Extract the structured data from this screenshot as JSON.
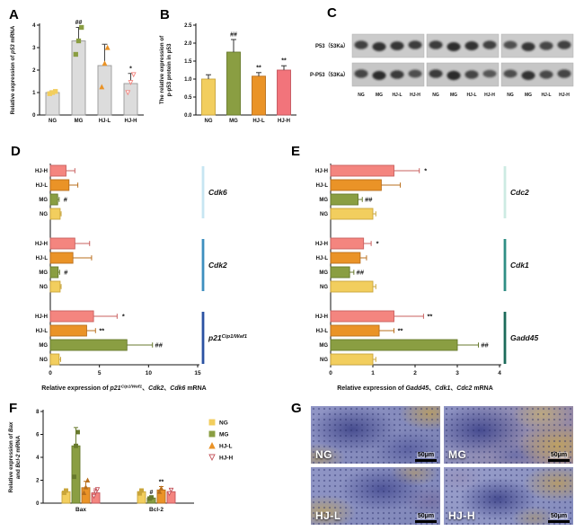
{
  "panel_letters": {
    "A": "A",
    "B": "B",
    "C": "C",
    "D": "D",
    "E": "E",
    "F": "F",
    "G": "G"
  },
  "group_colors": {
    "NG": "#F2CE5E",
    "MG": "#8A9E42",
    "HJ-L": "#EA9327",
    "HJ-H": "#F4857F"
  },
  "edge_colors": {
    "NG": "#C9A53A",
    "MG": "#67792C",
    "HJ-L": "#B96F1D",
    "HJ-H": "#C9605F"
  },
  "chart_data": [
    {
      "panel": "A",
      "type": "bar",
      "ylabel_lines": [
        [
          {
            "t": "Relative expression of "
          },
          {
            "t": "p53",
            "i": true
          },
          {
            "t": " mRNA"
          }
        ]
      ],
      "ylim": [
        0,
        4
      ],
      "yticks": [
        0,
        1,
        2,
        3,
        4
      ],
      "ytick_decimals": 0,
      "categories": [
        "NG",
        "MG",
        "HJ-L",
        "HJ-H"
      ],
      "values": [
        1.0,
        3.3,
        2.2,
        1.4
      ],
      "errors": [
        0.08,
        0.6,
        0.95,
        0.45
      ],
      "annotations": [
        "",
        "##",
        "",
        "*"
      ],
      "bar_colors": [
        "#dcdcdc",
        "#dcdcdc",
        "#dcdcdc",
        "#dcdcdc"
      ],
      "bar_edges": [
        "#999999",
        "#999999",
        "#999999",
        "#999999"
      ],
      "err_color": "#444444",
      "points": [
        [
          0.95,
          1.0,
          1.05
        ],
        [
          2.7,
          3.3,
          3.9
        ],
        [
          1.25,
          2.3,
          3.0
        ],
        [
          1.0,
          1.45,
          1.8
        ]
      ],
      "point_shapes": [
        "square",
        "square",
        "triangle",
        "triangle-down"
      ],
      "point_colors": [
        "#F2CE5E",
        "#8A9E42",
        "#EA9327",
        "#F4857F"
      ],
      "point_filled": [
        true,
        true,
        true,
        false
      ]
    },
    {
      "panel": "B",
      "type": "bar",
      "ylabel_lines": [
        [
          {
            "t": "The relative expression of"
          }
        ],
        [
          {
            "t": "p-p53 protein in p53"
          }
        ]
      ],
      "ylim": [
        0,
        2.5
      ],
      "yticks": [
        0,
        0.5,
        1,
        1.5,
        2,
        2.5
      ],
      "ytick_decimals": 1,
      "categories": [
        "NG",
        "MG",
        "HJ-L",
        "HJ-H"
      ],
      "values": [
        1.0,
        1.75,
        1.08,
        1.25
      ],
      "errors": [
        0.12,
        0.35,
        0.1,
        0.12
      ],
      "annotations": [
        "",
        "##",
        "**",
        "**"
      ],
      "bar_colors": [
        "#F2CE5E",
        "#8A9E42",
        "#EA9327",
        "#F2747B"
      ],
      "bar_edges": [
        "#C9A53A",
        "#67792C",
        "#B96F1D",
        "#C4555C"
      ],
      "err_color": "#333333"
    },
    {
      "panel": "C",
      "type": "western_blot",
      "row_labels": [
        "P53（53Ka）",
        "P-P53（53Ka）"
      ],
      "lane_labels": [
        "NG",
        "MG",
        "HJ-L",
        "HJ-H"
      ],
      "replicate_groups": 3,
      "bands": {
        "P53": [
          [
            0.75,
            0.9,
            0.85,
            0.8
          ],
          [
            0.8,
            0.95,
            0.9,
            0.75
          ],
          [
            0.6,
            0.85,
            0.7,
            0.75
          ]
        ],
        "P-P53": [
          [
            0.7,
            0.95,
            0.8,
            0.6
          ],
          [
            0.8,
            0.97,
            0.7,
            0.5
          ],
          [
            0.6,
            0.9,
            0.65,
            0.7
          ]
        ]
      }
    },
    {
      "panel": "D",
      "type": "bar_horizontal",
      "xlabel": [
        {
          "t": "Relative expression of "
        },
        {
          "t": "p21",
          "i": true
        },
        {
          "t": "Cip1/Waf1",
          "i": true,
          "sup": true
        },
        {
          "t": "、"
        },
        {
          "t": "Cdk2",
          "i": true
        },
        {
          "t": "、"
        },
        {
          "t": "Cdk6",
          "i": true
        },
        {
          "t": " mRNA"
        }
      ],
      "xlim": [
        0,
        15
      ],
      "xticks": [
        0,
        5,
        10,
        15
      ],
      "groups": [
        {
          "gene": [
            {
              "t": "Cdk6",
              "i": true
            }
          ],
          "bracket_color": "#C7E6F2",
          "rows": [
            {
              "label": "HJ-H",
              "value": 1.6,
              "err": 0.9,
              "annotation": ""
            },
            {
              "label": "HJ-L",
              "value": 1.9,
              "err": 0.9,
              "annotation": ""
            },
            {
              "label": "MG",
              "value": 0.75,
              "err": 0.15,
              "annotation": "#"
            },
            {
              "label": "NG",
              "value": 1.0,
              "err": 0.1,
              "annotation": ""
            }
          ]
        },
        {
          "gene": [
            {
              "t": "Cdk2",
              "i": true
            }
          ],
          "bracket_color": "#3E8FBF",
          "rows": [
            {
              "label": "HJ-H",
              "value": 2.5,
              "err": 1.5,
              "annotation": ""
            },
            {
              "label": "HJ-L",
              "value": 2.3,
              "err": 1.9,
              "annotation": ""
            },
            {
              "label": "MG",
              "value": 0.8,
              "err": 0.15,
              "annotation": "#"
            },
            {
              "label": "NG",
              "value": 1.0,
              "err": 0.1,
              "annotation": ""
            }
          ]
        },
        {
          "gene": [
            {
              "t": "p21",
              "i": true
            },
            {
              "t": "Cip1/Waf1",
              "i": true,
              "sup": true
            }
          ],
          "bracket_color": "#2B52A3",
          "rows": [
            {
              "label": "HJ-H",
              "value": 4.4,
              "err": 2.4,
              "annotation": "*"
            },
            {
              "label": "HJ-L",
              "value": 3.7,
              "err": 0.9,
              "annotation": "**"
            },
            {
              "label": "MG",
              "value": 7.8,
              "err": 2.6,
              "annotation": "##"
            },
            {
              "label": "NG",
              "value": 0.9,
              "err": 0.15,
              "annotation": ""
            }
          ]
        }
      ]
    },
    {
      "panel": "E",
      "type": "bar_horizontal",
      "xlabel": [
        {
          "t": "Relative expression of "
        },
        {
          "t": "Gadd45",
          "i": true
        },
        {
          "t": "、"
        },
        {
          "t": "Cdk1",
          "i": true
        },
        {
          "t": "、"
        },
        {
          "t": "Cdc2",
          "i": true
        },
        {
          "t": " mRNA"
        }
      ],
      "xlim": [
        0,
        4
      ],
      "xticks": [
        0,
        1,
        2,
        3,
        4
      ],
      "groups": [
        {
          "gene": [
            {
              "t": "Cdc2",
              "i": true
            }
          ],
          "bracket_color": "#CDEBE3",
          "rows": [
            {
              "label": "HJ-H",
              "value": 1.5,
              "err": 0.6,
              "annotation": "*"
            },
            {
              "label": "HJ-L",
              "value": 1.2,
              "err": 0.45,
              "annotation": ""
            },
            {
              "label": "MG",
              "value": 0.65,
              "err": 0.1,
              "annotation": "##"
            },
            {
              "label": "NG",
              "value": 1.0,
              "err": 0.07,
              "annotation": ""
            }
          ]
        },
        {
          "gene": [
            {
              "t": "Cdk1",
              "i": true
            }
          ],
          "bracket_color": "#2F8F85",
          "rows": [
            {
              "label": "HJ-H",
              "value": 0.78,
              "err": 0.18,
              "annotation": "*"
            },
            {
              "label": "HJ-L",
              "value": 0.7,
              "err": 0.15,
              "annotation": ""
            },
            {
              "label": "MG",
              "value": 0.45,
              "err": 0.1,
              "annotation": "##"
            },
            {
              "label": "NG",
              "value": 1.0,
              "err": 0.07,
              "annotation": ""
            }
          ]
        },
        {
          "gene": [
            {
              "t": "Gadd45",
              "i": true
            }
          ],
          "bracket_color": "#1C6B5A",
          "rows": [
            {
              "label": "HJ-H",
              "value": 1.5,
              "err": 0.7,
              "annotation": "**"
            },
            {
              "label": "HJ-L",
              "value": 1.15,
              "err": 0.35,
              "annotation": "**"
            },
            {
              "label": "MG",
              "value": 3.0,
              "err": 0.5,
              "annotation": "##"
            },
            {
              "label": "NG",
              "value": 1.0,
              "err": 0.07,
              "annotation": ""
            }
          ]
        }
      ]
    },
    {
      "panel": "F",
      "type": "bar_grouped",
      "ylabel_lines": [
        [
          {
            "t": "Relative expression of "
          },
          {
            "t": "Bax",
            "i": true
          }
        ],
        [
          {
            "t": "and "
          },
          {
            "t": "Bcl-2",
            "i": true
          },
          {
            "t": " mRNA"
          }
        ]
      ],
      "ylim": [
        0,
        8
      ],
      "yticks": [
        0,
        2,
        4,
        6,
        8
      ],
      "ytick_decimals": 0,
      "categories": [
        "Bax",
        "Bcl-2"
      ],
      "series": [
        {
          "name": "NG",
          "color": "#F2CE5E",
          "edge": "#C9A53A",
          "marker": "square",
          "marker_filled": true,
          "values": [
            1.0,
            1.0
          ],
          "errors": [
            0.15,
            0.12
          ],
          "annotations": [
            "",
            ""
          ],
          "points": [
            [
              0.9,
              1.1
            ],
            [
              0.85,
              1.1
            ]
          ]
        },
        {
          "name": "MG",
          "color": "#8A9E42",
          "edge": "#67792C",
          "marker": "square",
          "marker_filled": true,
          "values": [
            5.0,
            0.45
          ],
          "errors": [
            1.6,
            0.1
          ],
          "annotations": [
            "",
            "#"
          ],
          "points": [
            [
              2.3,
              5.0,
              6.2
            ],
            [
              0.4,
              0.5
            ]
          ]
        },
        {
          "name": "HJ-L",
          "color": "#EA9327",
          "edge": "#B96F1D",
          "marker": "triangle",
          "marker_filled": true,
          "values": [
            1.35,
            1.15
          ],
          "errors": [
            0.55,
            0.3
          ],
          "annotations": [
            "",
            "**"
          ],
          "points": [
            [
              0.9,
              1.4,
              2.0
            ],
            [
              1.0,
              1.3
            ]
          ]
        },
        {
          "name": "HJ-H",
          "color": "#F4857F",
          "edge": "#C4555C",
          "marker": "triangle-down",
          "marker_filled": false,
          "values": [
            0.9,
            1.0
          ],
          "errors": [
            0.35,
            0.25
          ],
          "annotations": [
            "",
            ""
          ],
          "points": [
            [
              0.6,
              0.95,
              1.2
            ],
            [
              0.85,
              1.15
            ]
          ]
        }
      ],
      "legend": [
        "NG",
        "MG",
        "HJ-L",
        "HJ-H"
      ]
    },
    {
      "panel": "G",
      "type": "histology",
      "images": [
        {
          "label": "NG",
          "scale": "50μm"
        },
        {
          "label": "MG",
          "scale": "50μm"
        },
        {
          "label": "HJ-L",
          "scale": "50μm"
        },
        {
          "label": "HJ-H",
          "scale": "50μm"
        }
      ]
    }
  ]
}
